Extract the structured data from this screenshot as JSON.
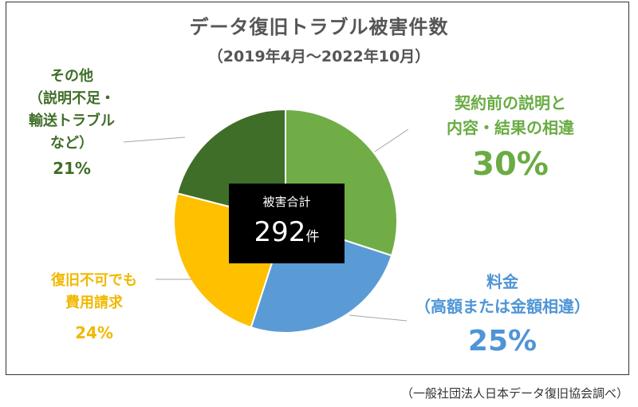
{
  "title": "データ復旧トラブル被害件数",
  "subtitle": "（2019年4月～2022年10月）",
  "source": "（一般社団法人日本データ復旧協会調べ）",
  "center": {
    "caption": "被害合計",
    "total": "292",
    "unit": "件"
  },
  "labels": {
    "other": [
      "その他",
      "（説明不足・",
      "輸送トラブル",
      "など）"
    ],
    "contract": [
      "契約前の説明と",
      "内容・結果の相違"
    ],
    "fee": [
      "料金",
      "（高額または金額相違）"
    ],
    "restore": [
      "復旧不可でも",
      "費用請求"
    ]
  },
  "chart_data": {
    "type": "pie",
    "title": "データ復旧トラブル被害件数",
    "subtitle": "（2019年4月～2022年10月）",
    "total": 292,
    "slices": [
      {
        "label": "契約前の説明と内容・結果の相違",
        "value": 30,
        "display": "30%",
        "color": "#70ad47"
      },
      {
        "label": "料金（高額または金額相違）",
        "value": 25,
        "display": "25%",
        "color": "#5b9bd5"
      },
      {
        "label": "復旧不可でも費用請求",
        "value": 24,
        "display": "24%",
        "color": "#ffc000"
      },
      {
        "label": "その他（説明不足・輸送トラブルなど）",
        "value": 21,
        "display": "21%",
        "color": "#3f6e28"
      }
    ],
    "start_angle_deg": 0,
    "direction": "clockwise"
  }
}
